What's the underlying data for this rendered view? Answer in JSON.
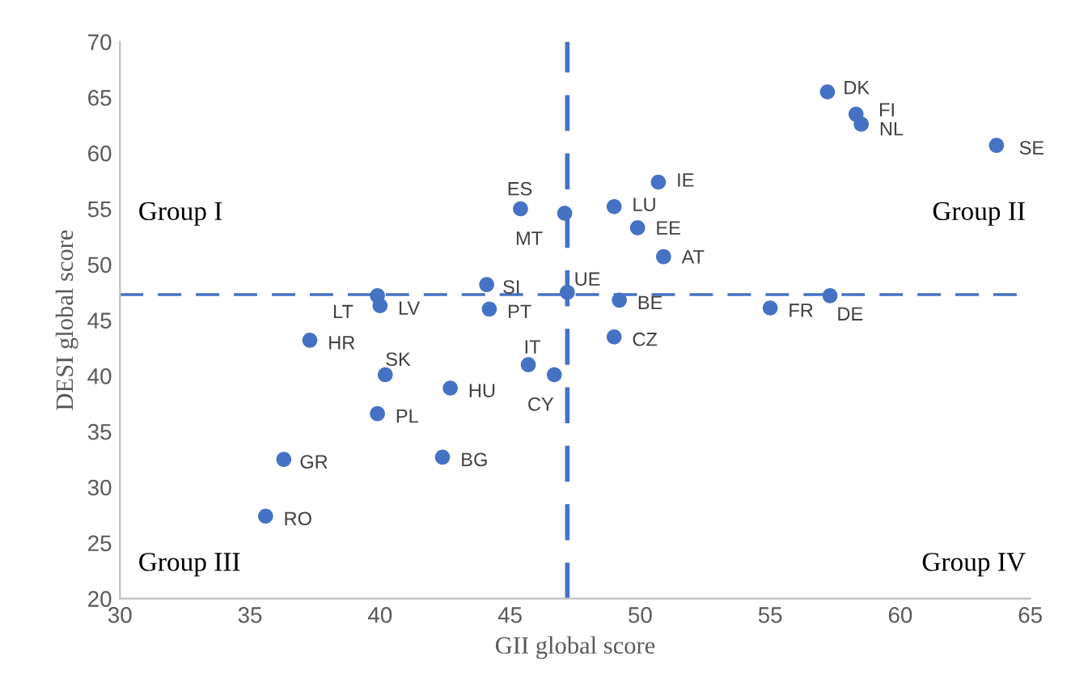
{
  "chart_data": {
    "type": "scatter",
    "xlabel": "GII global score",
    "ylabel": "DESI global score",
    "xlim": [
      30,
      65
    ],
    "ylim": [
      20,
      70
    ],
    "xticks": [
      30,
      35,
      40,
      45,
      50,
      55,
      60,
      65
    ],
    "yticks": [
      20,
      25,
      30,
      35,
      40,
      45,
      50,
      55,
      60,
      65,
      70
    ],
    "grid": false,
    "legend": false,
    "marker": "circle",
    "annotations": [
      "Group I",
      "Group II",
      "Group III",
      "Group IV"
    ],
    "ref_lines": [
      {
        "axis": "x",
        "value": 47.2,
        "color": "#4472c4",
        "line_style": "dashed"
      },
      {
        "axis": "y",
        "value": 47.3,
        "color": "#4472c4",
        "line_style": "dashed"
      }
    ],
    "series": [
      {
        "name": "DK",
        "color": "#4472c4",
        "x": [
          57.2
        ],
        "values": [
          65.5
        ]
      },
      {
        "name": "FI",
        "color": "#4472c4",
        "x": [
          58.3
        ],
        "values": [
          63.5
        ]
      },
      {
        "name": "NL",
        "color": "#4472c4",
        "x": [
          58.5
        ],
        "values": [
          62.6
        ]
      },
      {
        "name": "SE",
        "color": "#4472c4",
        "x": [
          63.7
        ],
        "values": [
          60.7
        ]
      },
      {
        "name": "IE",
        "color": "#4472c4",
        "x": [
          50.7
        ],
        "values": [
          57.4
        ]
      },
      {
        "name": "ES",
        "color": "#4472c4",
        "x": [
          45.4
        ],
        "values": [
          55.0
        ]
      },
      {
        "name": "MT",
        "color": "#4472c4",
        "x": [
          47.1
        ],
        "values": [
          54.6
        ]
      },
      {
        "name": "LU",
        "color": "#4472c4",
        "x": [
          49.0
        ],
        "values": [
          55.2
        ]
      },
      {
        "name": "EE",
        "color": "#4472c4",
        "x": [
          49.9
        ],
        "values": [
          53.3
        ]
      },
      {
        "name": "AT",
        "color": "#4472c4",
        "x": [
          50.9
        ],
        "values": [
          50.7
        ]
      },
      {
        "name": "SI",
        "color": "#4472c4",
        "x": [
          44.1
        ],
        "values": [
          48.2
        ]
      },
      {
        "name": "UE",
        "color": "#4472c4",
        "x": [
          47.2
        ],
        "values": [
          47.5
        ]
      },
      {
        "name": "BE",
        "color": "#4472c4",
        "x": [
          49.2
        ],
        "values": [
          46.8
        ]
      },
      {
        "name": "PT",
        "color": "#4472c4",
        "x": [
          44.2
        ],
        "values": [
          46.0
        ]
      },
      {
        "name": "FR",
        "color": "#4472c4",
        "x": [
          55.0
        ],
        "values": [
          46.1
        ]
      },
      {
        "name": "DE",
        "color": "#4472c4",
        "x": [
          57.3
        ],
        "values": [
          47.2
        ]
      },
      {
        "name": "CZ",
        "color": "#4472c4",
        "x": [
          49.0
        ],
        "values": [
          43.5
        ]
      },
      {
        "name": "IT",
        "color": "#4472c4",
        "x": [
          45.7
        ],
        "values": [
          41.0
        ]
      },
      {
        "name": "CY",
        "color": "#4472c4",
        "x": [
          46.7
        ],
        "values": [
          40.1
        ]
      },
      {
        "name": "LT",
        "color": "#4472c4",
        "x": [
          39.9
        ],
        "values": [
          47.2
        ]
      },
      {
        "name": "LV",
        "color": "#4472c4",
        "x": [
          40.0
        ],
        "values": [
          46.3
        ]
      },
      {
        "name": "HR",
        "color": "#4472c4",
        "x": [
          37.3
        ],
        "values": [
          43.2
        ]
      },
      {
        "name": "SK",
        "color": "#4472c4",
        "x": [
          40.2
        ],
        "values": [
          40.1
        ]
      },
      {
        "name": "HU",
        "color": "#4472c4",
        "x": [
          42.7
        ],
        "values": [
          38.9
        ]
      },
      {
        "name": "PL",
        "color": "#4472c4",
        "x": [
          39.9
        ],
        "values": [
          36.6
        ]
      },
      {
        "name": "GR",
        "color": "#4472c4",
        "x": [
          36.3
        ],
        "values": [
          32.5
        ]
      },
      {
        "name": "BG",
        "color": "#4472c4",
        "x": [
          42.4
        ],
        "values": [
          32.7
        ]
      },
      {
        "name": "RO",
        "color": "#4472c4",
        "x": [
          35.6
        ],
        "values": [
          27.4
        ]
      }
    ]
  }
}
